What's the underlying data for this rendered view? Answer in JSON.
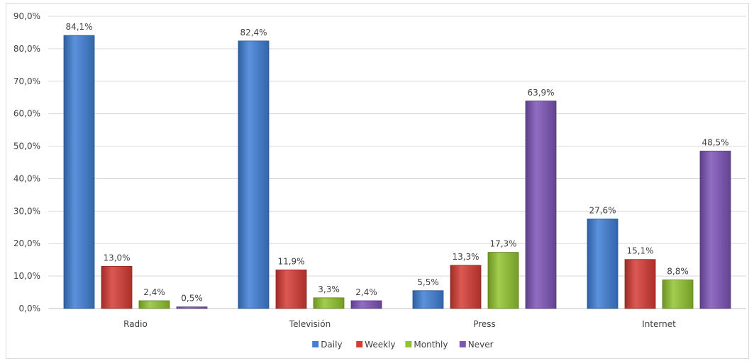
{
  "chart_data": {
    "type": "bar",
    "categories": [
      "Radio",
      "Televisión",
      "Press",
      "Internet"
    ],
    "series": [
      {
        "name": "Daily",
        "color": "#3f7fd6",
        "values": [
          84.1,
          82.4,
          5.5,
          27.6
        ]
      },
      {
        "name": "Weekly",
        "color": "#d63b35",
        "values": [
          13.0,
          11.9,
          13.3,
          15.1
        ]
      },
      {
        "name": "Monthly",
        "color": "#92c42f",
        "values": [
          2.4,
          3.3,
          17.3,
          8.8
        ]
      },
      {
        "name": "Never",
        "color": "#7e54b8",
        "values": [
          0.5,
          2.4,
          63.9,
          48.5
        ]
      }
    ],
    "data_labels": [
      [
        "84,1%",
        "82,4%",
        "5,5%",
        "27,6%"
      ],
      [
        "13,0%",
        "11,9%",
        "13,3%",
        "15,1%"
      ],
      [
        "2,4%",
        "3,3%",
        "17,3%",
        "8,8%"
      ],
      [
        "0,5%",
        "2,4%",
        "63,9%",
        "48,5%"
      ]
    ],
    "yticks": [
      "0,0%",
      "10,0%",
      "20,0%",
      "30,0%",
      "40,0%",
      "50,0%",
      "60,0%",
      "70,0%",
      "80,0%",
      "90,0%"
    ],
    "ylim": [
      0,
      90
    ],
    "grid": true,
    "legend_position": "bottom",
    "title": "",
    "xlabel": "",
    "ylabel": ""
  }
}
